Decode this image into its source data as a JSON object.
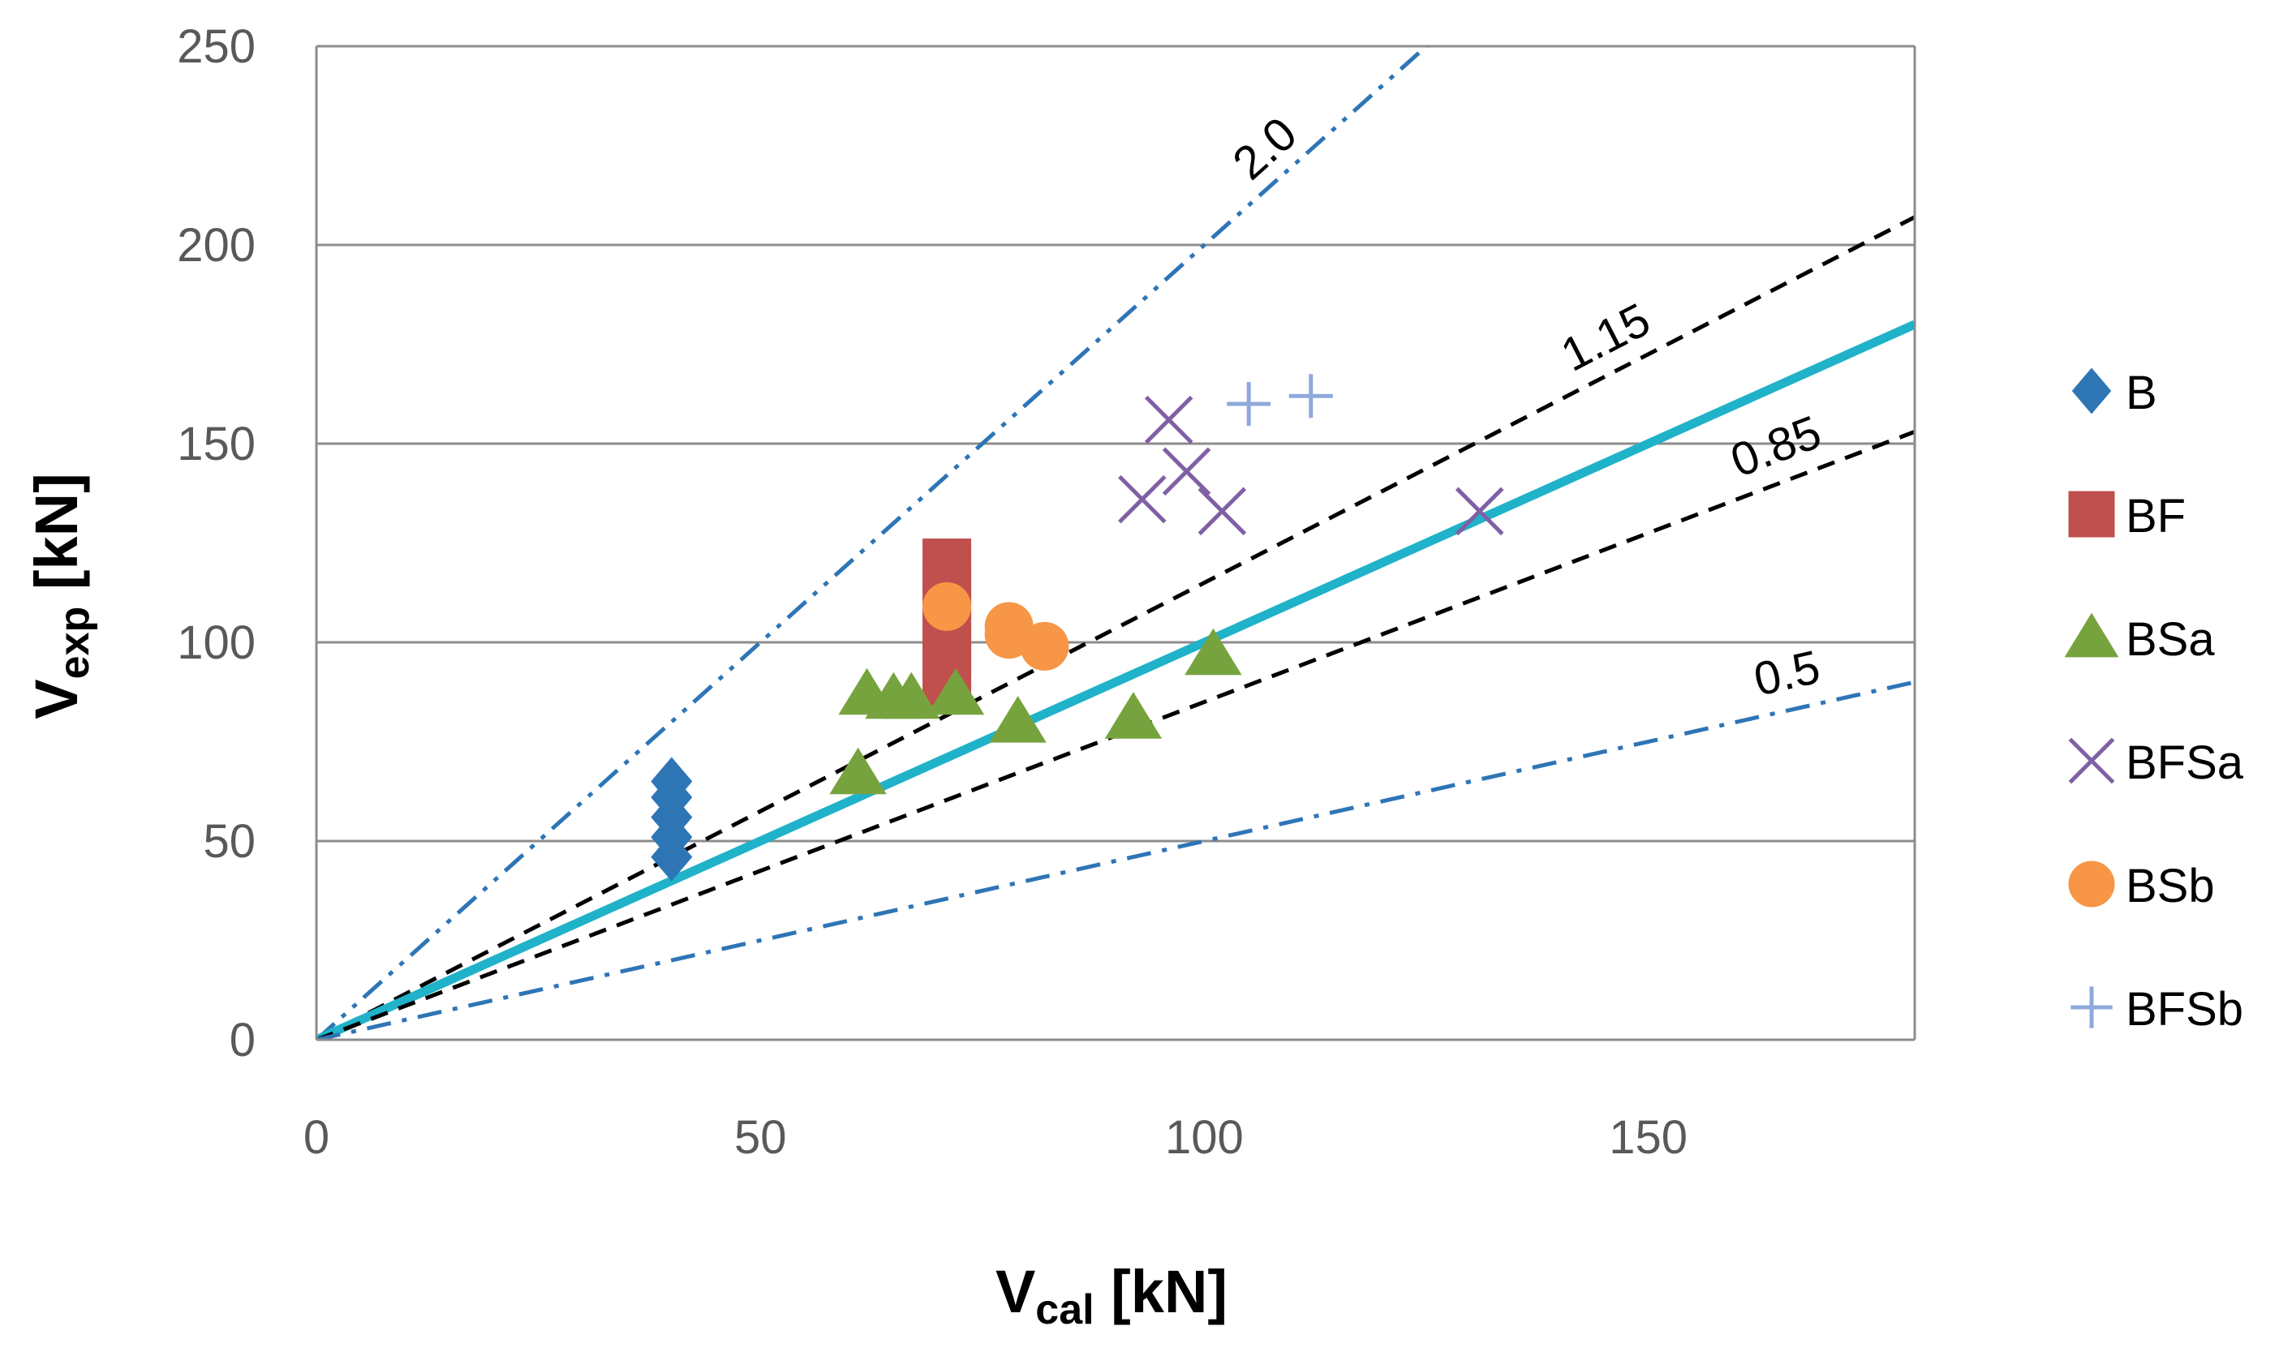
{
  "chart_data": {
    "type": "scatter",
    "xlabel": {
      "main": "V",
      "sub": "cal",
      "unit": " [kN]"
    },
    "ylabel": {
      "main": "V",
      "sub": "exp",
      "unit": " [kN]"
    },
    "xlim": [
      0,
      180
    ],
    "ylim": [
      0,
      250
    ],
    "x_ticks": [
      0,
      50,
      100,
      150
    ],
    "y_ticks": [
      0,
      50,
      100,
      150,
      200,
      250
    ],
    "grid": "horizontal",
    "legend_position": "right",
    "reference_lines": [
      {
        "slope": 2.0,
        "label": "2.0",
        "style": "dash-dot-dot",
        "color": "#2e75b6"
      },
      {
        "slope": 1.15,
        "label": "1.15",
        "style": "dashed",
        "color": "#000000"
      },
      {
        "slope": 1.0,
        "label": "",
        "style": "solid",
        "color": "#1fb2c9"
      },
      {
        "slope": 0.85,
        "label": "0.85",
        "style": "dashed",
        "color": "#000000"
      },
      {
        "slope": 0.5,
        "label": "0.5",
        "style": "dash-dot",
        "color": "#2e75b6"
      }
    ],
    "series": [
      {
        "name": "B",
        "marker": "diamond",
        "color": "#2e75b6",
        "points": [
          [
            40,
            46
          ],
          [
            40,
            51
          ],
          [
            40,
            56
          ],
          [
            40,
            61
          ],
          [
            40,
            65
          ]
        ]
      },
      {
        "name": "BF",
        "marker": "square",
        "color": "#c0504d",
        "points": [
          [
            71,
            90
          ],
          [
            71,
            96
          ],
          [
            71,
            102
          ],
          [
            71,
            108
          ],
          [
            71,
            114
          ],
          [
            71,
            120
          ]
        ]
      },
      {
        "name": "BSa",
        "marker": "triangle",
        "color": "#77a33e",
        "points": [
          [
            61,
            67
          ],
          [
            62,
            87
          ],
          [
            65,
            86
          ],
          [
            67,
            86
          ],
          [
            72,
            87
          ],
          [
            79,
            80
          ],
          [
            92,
            81
          ],
          [
            101,
            97
          ]
        ]
      },
      {
        "name": "BFSa",
        "marker": "x",
        "color": "#7f60a5",
        "points": [
          [
            93,
            136
          ],
          [
            96,
            156
          ],
          [
            98,
            143
          ],
          [
            102,
            133
          ],
          [
            131,
            133
          ]
        ]
      },
      {
        "name": "BSb",
        "marker": "circle",
        "color": "#f79646",
        "points": [
          [
            71,
            109
          ],
          [
            78,
            104
          ],
          [
            78,
            102
          ],
          [
            82,
            99
          ]
        ]
      },
      {
        "name": "BFSb",
        "marker": "plus",
        "color": "#8ea9db",
        "points": [
          [
            105,
            160
          ],
          [
            112,
            162
          ]
        ]
      }
    ]
  }
}
